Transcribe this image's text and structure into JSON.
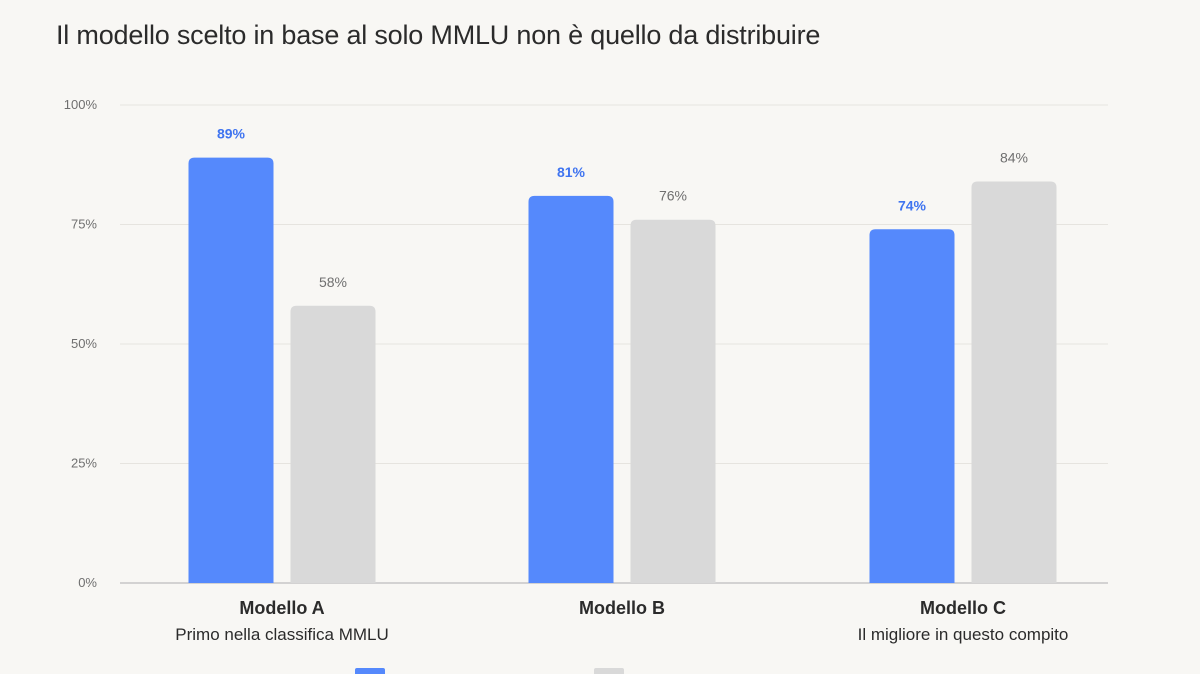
{
  "chart_data": {
    "type": "bar",
    "title": "Il modello scelto in base al solo MMLU non è quello da distribuire",
    "categories": [
      "Modello A",
      "Modello B",
      "Modello C"
    ],
    "subtitles": [
      "Primo nella classifica MMLU",
      "",
      "Il migliore in questo compito"
    ],
    "series": [
      {
        "values": [
          89,
          81,
          74
        ],
        "labels": [
          "89%",
          "81%",
          "74%"
        ],
        "color": "#5589fc",
        "label_color": "#3f74f0"
      },
      {
        "values": [
          58,
          76,
          84
        ],
        "labels": [
          "58%",
          "76%",
          "84%"
        ],
        "color": "#d9d9d9",
        "label_color": "#6f6f6f"
      }
    ],
    "ylim": [
      0,
      100
    ],
    "y_ticks": [
      0,
      25,
      50,
      75,
      100
    ],
    "y_tick_labels": [
      "0%",
      "25%",
      "50%",
      "75%",
      "100%"
    ],
    "grid": true,
    "legend": "bottom"
  }
}
